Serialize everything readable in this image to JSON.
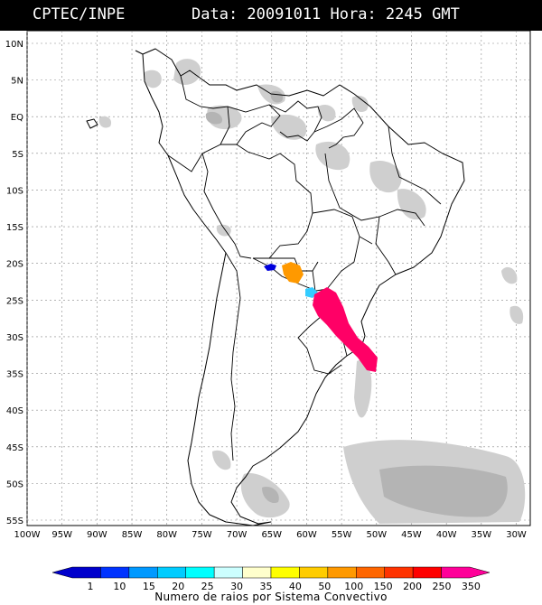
{
  "header": {
    "source": "CPTEC/INPE",
    "datetime": "Data: 20091011 Hora: 2245 GMT"
  },
  "map": {
    "lat_labels": [
      "10N",
      "5N",
      "EQ",
      "5S",
      "10S",
      "15S",
      "20S",
      "25S",
      "30S",
      "35S",
      "40S",
      "45S",
      "50S",
      "55S"
    ],
    "lon_labels": [
      "100W",
      "95W",
      "90W",
      "85W",
      "80W",
      "75W",
      "70W",
      "65W",
      "60W",
      "55W",
      "50W",
      "45W",
      "40W",
      "35W",
      "30W"
    ],
    "lat_range": [
      10,
      -55
    ],
    "lon_range": [
      -100,
      -28
    ],
    "colors": {
      "cloud": "#d0d0d0",
      "cloud_dark": "#a9a9a9",
      "coast": "#000000"
    },
    "lightning_systems": [
      {
        "lat": -20.0,
        "lon": -64.2,
        "color": "#0000dd"
      },
      {
        "lat": -20.8,
        "lon": -60.5,
        "color": "#ff9900"
      },
      {
        "lat": -23.5,
        "lon": -57.5,
        "color": "#33ccff"
      },
      {
        "lat": -29.5,
        "lon": -53.0,
        "color": "#ff0066"
      }
    ]
  },
  "legend": {
    "values": [
      "1",
      "10",
      "15",
      "20",
      "25",
      "30",
      "35",
      "40",
      "50",
      "100",
      "150",
      "200",
      "250",
      "350"
    ],
    "colors": [
      "#0000cc",
      "#0033ff",
      "#0099ff",
      "#00ccff",
      "#00ffff",
      "#ccffff",
      "#ffffcc",
      "#ffff00",
      "#ffcc00",
      "#ff9900",
      "#ff6600",
      "#ff3300",
      "#ff0000",
      "#ff0099"
    ],
    "caption": "Numero de raios por Sistema Convectivo"
  }
}
